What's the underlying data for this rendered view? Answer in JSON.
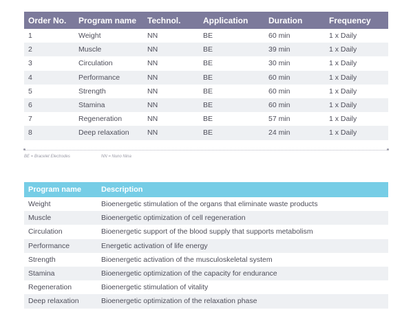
{
  "programs_table": {
    "headers": [
      "Order No.",
      "Program name",
      "Technol.",
      "Application",
      "Duration",
      "Frequency"
    ],
    "rows": [
      [
        "1",
        "Weight",
        "NN",
        "BE",
        "60 min",
        "1 x Daily"
      ],
      [
        "2",
        "Muscle",
        "NN",
        "BE",
        "39 min",
        "1 x Daily"
      ],
      [
        "3",
        "Circulation",
        "NN",
        "BE",
        "30 min",
        "1 x Daily"
      ],
      [
        "4",
        "Performance",
        "NN",
        "BE",
        "60 min",
        "1 x Daily"
      ],
      [
        "5",
        "Strength",
        "NN",
        "BE",
        "60 min",
        "1 x Daily"
      ],
      [
        "6",
        "Stamina",
        "NN",
        "BE",
        "60 min",
        "1 x Daily"
      ],
      [
        "7",
        "Regeneration",
        "NN",
        "BE",
        "57 min",
        "1 x Daily"
      ],
      [
        "8",
        "Deep relaxation",
        "NN",
        "BE",
        "24 min",
        "1 x Daily"
      ]
    ]
  },
  "legend": {
    "be": "BE = Bracelet Electrodes",
    "nn": "NN = Nuno Nina"
  },
  "description_table": {
    "headers": [
      "Program name",
      "Description"
    ],
    "rows": [
      [
        "Weight",
        "Bioenergetic stimulation of the organs that eliminate waste products"
      ],
      [
        "Muscle",
        "Bioenergetic optimization of cell regeneration"
      ],
      [
        "Circulation",
        "Bioenergetic support of the blood supply that supports metabolism"
      ],
      [
        "Performance",
        "Energetic activation of life energy"
      ],
      [
        "Strength",
        "Bioenergetic activation of the musculoskeletal system"
      ],
      [
        "Stamina",
        "Bioenergetic optimization of the capacity for endurance"
      ],
      [
        "Regeneration",
        "Bioenergetic stimulation of vitality"
      ],
      [
        "Deep relaxation",
        "Bioenergetic optimization of the relaxation phase"
      ]
    ]
  },
  "colors": {
    "programs_header": "#7c7a9b",
    "description_header": "#76cde6",
    "row_stripe": "#eef0f3"
  }
}
